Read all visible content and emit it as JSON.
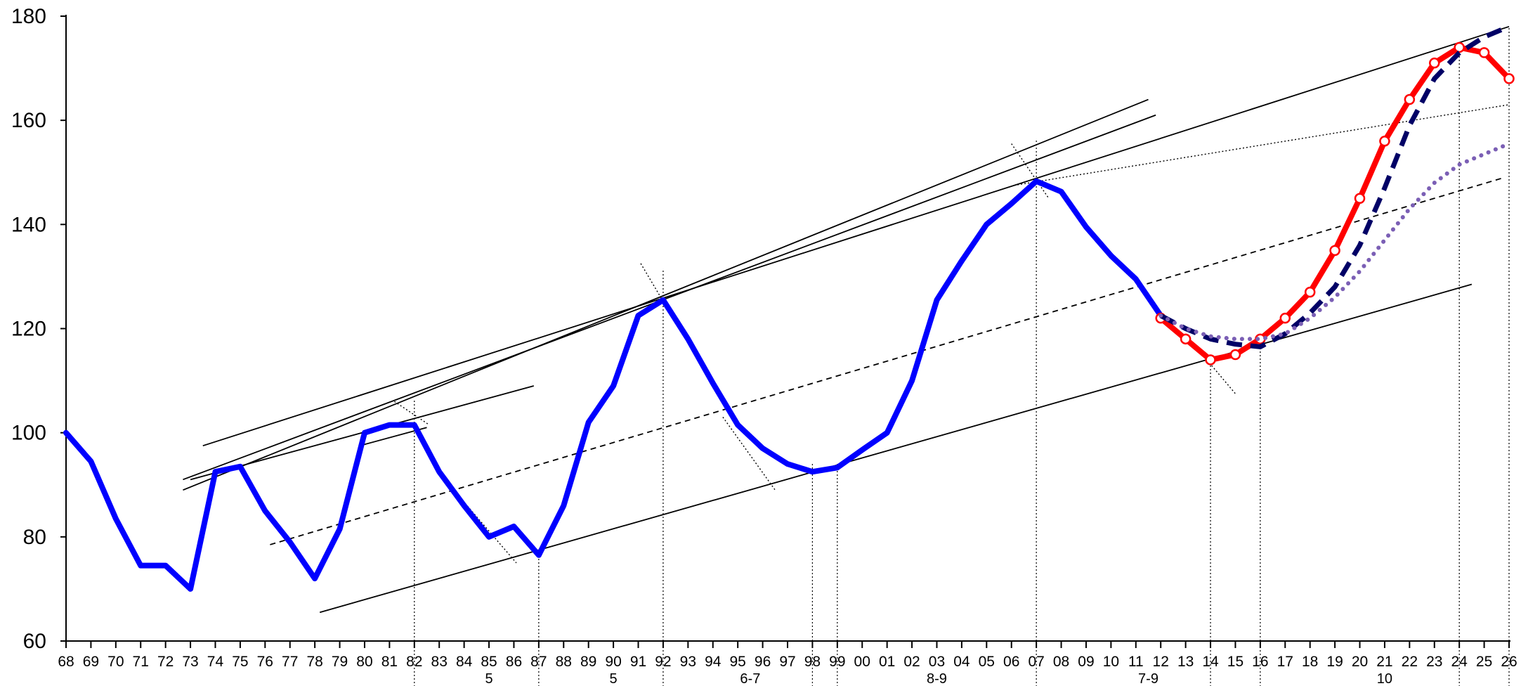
{
  "chart_data": {
    "type": "line",
    "title": "",
    "xlabel": "",
    "ylabel": "",
    "x_tick_labels": [
      "68",
      "69",
      "70",
      "71",
      "72",
      "73",
      "74",
      "75",
      "76",
      "77",
      "78",
      "79",
      "80",
      "81",
      "82",
      "83",
      "84",
      "85",
      "86",
      "87",
      "88",
      "89",
      "90",
      "91",
      "92",
      "93",
      "94",
      "95",
      "96",
      "97",
      "98",
      "99",
      "00",
      "01",
      "02",
      "03",
      "04",
      "05",
      "06",
      "07",
      "08",
      "09",
      "10",
      "11",
      "12",
      "13",
      "14",
      "15",
      "16",
      "17",
      "18",
      "19",
      "20",
      "21",
      "22",
      "23",
      "24",
      "25",
      "26"
    ],
    "x_range": [
      1968,
      2026
    ],
    "ylim": [
      60,
      180
    ],
    "y_ticks": [
      60,
      80,
      100,
      120,
      140,
      160,
      180
    ],
    "grid": false,
    "legend": "none",
    "group_labels": [
      {
        "text": "5",
        "x": 1985
      },
      {
        "text": "5",
        "x": 1990
      },
      {
        "text": "6-7",
        "x": 1995.5
      },
      {
        "text": "8-9",
        "x": 2003
      },
      {
        "text": "7-9",
        "x": 2011.5
      },
      {
        "text": "10",
        "x": 2021
      }
    ],
    "cycle_markers_x": [
      1982,
      1987,
      1992,
      1998,
      1999,
      2007,
      2014,
      2016,
      2024,
      2026
    ],
    "series": [
      {
        "style": "solid-thick",
        "color": "#0000ff",
        "x": [
          1968,
          1969,
          1970,
          1971,
          1972,
          1973,
          1974,
          1975,
          1976,
          1977,
          1978,
          1979,
          1980,
          1981,
          1982,
          1983,
          1984,
          1985,
          1986,
          1987,
          1988,
          1989,
          1990,
          1991,
          1992,
          1993,
          1994,
          1995,
          1996,
          1997,
          1998,
          1999,
          2000,
          2001,
          2002,
          2003,
          2004,
          2005,
          2006,
          2007,
          2008,
          2009,
          2010,
          2011,
          2012
        ],
        "values": [
          100,
          94.5,
          83.5,
          74.5,
          74.5,
          70,
          92.5,
          93.5,
          85,
          79,
          72,
          81.5,
          100,
          101.5,
          101.5,
          92.5,
          86,
          80,
          82,
          76.5,
          86,
          102,
          109,
          122.5,
          125.5,
          118,
          109.5,
          101.5,
          97,
          94,
          92.5,
          93.3,
          96.7,
          100,
          110,
          125.5,
          133,
          140,
          144,
          148.3,
          146.3,
          139.5,
          134,
          129.5,
          122.5
        ]
      },
      {
        "style": "solid-thick-markers",
        "color": "#ff0000",
        "x": [
          2012,
          2013,
          2014,
          2015,
          2016,
          2017,
          2018,
          2019,
          2020,
          2021,
          2022,
          2023,
          2024,
          2025,
          2026
        ],
        "values": [
          122,
          118,
          114,
          115,
          118,
          122,
          127,
          135,
          145,
          156,
          164,
          171,
          174,
          173,
          168
        ]
      },
      {
        "style": "dashed-thick",
        "color": "#000066",
        "x": [
          2012,
          2013,
          2014,
          2015,
          2016,
          2017,
          2018,
          2019,
          2020,
          2021,
          2022,
          2023,
          2024,
          2025,
          2026
        ],
        "values": [
          122.5,
          120,
          118,
          117,
          116.5,
          119,
          123,
          128,
          136,
          147,
          159,
          168,
          173,
          176,
          178
        ]
      },
      {
        "style": "dotted-thick",
        "color": "#7b5fb5",
        "x": [
          2012,
          2013,
          2014,
          2015,
          2016,
          2017,
          2018,
          2019,
          2020,
          2021,
          2022,
          2023,
          2024,
          2025,
          2026
        ],
        "values": [
          122.5,
          120,
          118.5,
          118,
          118,
          119,
          122,
          126,
          131,
          137,
          143,
          148,
          151.5,
          153.5,
          155.5
        ]
      }
    ],
    "trend_lines": [
      {
        "style": "solid",
        "x": [
          1973.5,
          2026
        ],
        "values": [
          97.5,
          178
        ]
      },
      {
        "style": "solid",
        "x": [
          1978.2,
          2024.5
        ],
        "values": [
          65.5,
          128.5
        ]
      },
      {
        "style": "solid",
        "x": [
          1972.7,
          2011.5
        ],
        "values": [
          89,
          164
        ]
      },
      {
        "style": "solid",
        "x": [
          1972.7,
          2011.8
        ],
        "values": [
          91,
          161
        ]
      },
      {
        "style": "solid",
        "x": [
          1973,
          1986.8
        ],
        "values": [
          91,
          109
        ]
      },
      {
        "style": "solid",
        "x": [
          1979.8,
          1982.5
        ],
        "values": [
          97.5,
          101
        ]
      },
      {
        "style": "dashed",
        "x": [
          1976.2,
          2025.8
        ],
        "values": [
          78.5,
          149
        ]
      },
      {
        "style": "dotted",
        "x": [
          2006.1,
          2026
        ],
        "values": [
          147.5,
          163
        ]
      },
      {
        "style": "dotted",
        "x": [
          1981.2,
          1982.6
        ],
        "values": [
          106,
          101.5
        ]
      },
      {
        "style": "dotted",
        "x": [
          1983.4,
          1986.1
        ],
        "values": [
          90,
          75
        ]
      },
      {
        "style": "dotted",
        "x": [
          1991.1,
          1992.4
        ],
        "values": [
          132.5,
          122
        ]
      },
      {
        "style": "dotted",
        "x": [
          1994.4,
          1996.5
        ],
        "values": [
          103,
          89
        ]
      },
      {
        "style": "dotted",
        "x": [
          2006,
          2007.5
        ],
        "values": [
          155.5,
          145
        ]
      },
      {
        "style": "dotted",
        "x": [
          2013.5,
          2015
        ],
        "values": [
          116,
          107.5
        ]
      }
    ]
  }
}
